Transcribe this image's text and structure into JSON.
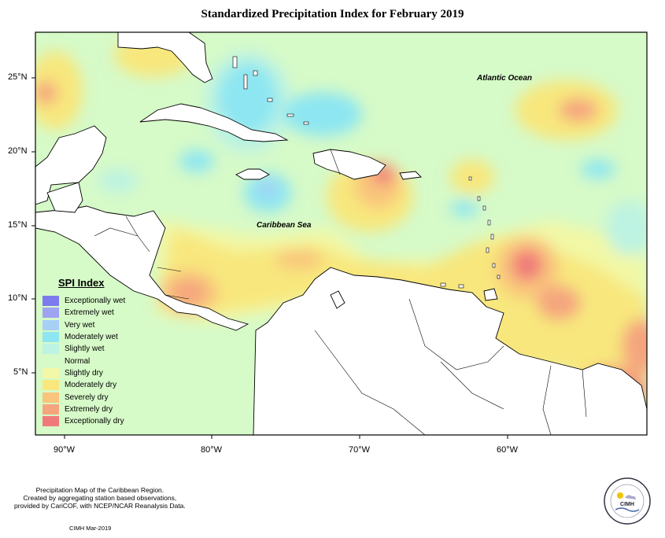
{
  "title": "Standardized Precipitation Index for February 2019",
  "lat_labels": [
    "25°N",
    "20°N",
    "15°N",
    "10°N",
    "5°N"
  ],
  "lon_labels": [
    "90°W",
    "80°W",
    "70°W",
    "60°W"
  ],
  "labels": {
    "atlantic": "Atlantic Ocean",
    "caribbean": "Caribbean Sea"
  },
  "legend": {
    "title": "SPI Index",
    "items": [
      {
        "label": "Exceptionally wet",
        "color": "#7b7bee"
      },
      {
        "label": "Extremely wet",
        "color": "#9ea3f2"
      },
      {
        "label": "Very wet",
        "color": "#a8cff5"
      },
      {
        "label": "Moderately wet",
        "color": "#8de6f2"
      },
      {
        "label": "Slightly wet",
        "color": "#bdf3e2"
      },
      {
        "label": "Normal",
        "color": "#d6fac8"
      },
      {
        "label": "Slightly dry",
        "color": "#f2f8a6"
      },
      {
        "label": "Moderately dry",
        "color": "#f8e77d"
      },
      {
        "label": "Severely dry",
        "color": "#f9c47c"
      },
      {
        "label": "Extremely dry",
        "color": "#f5a57e"
      },
      {
        "label": "Exceptionally dry",
        "color": "#f07a7a"
      }
    ]
  },
  "footer": {
    "line1": "Precipitation Map of the Caribbean Region.",
    "line2": "Created by aggregating station based observations,",
    "line3": "provided by CariCOF, with NCEP/NCAR Reanalysis Data.",
    "credit": "CIMH Mar-2019"
  },
  "logo": {
    "text": "CIMH"
  }
}
